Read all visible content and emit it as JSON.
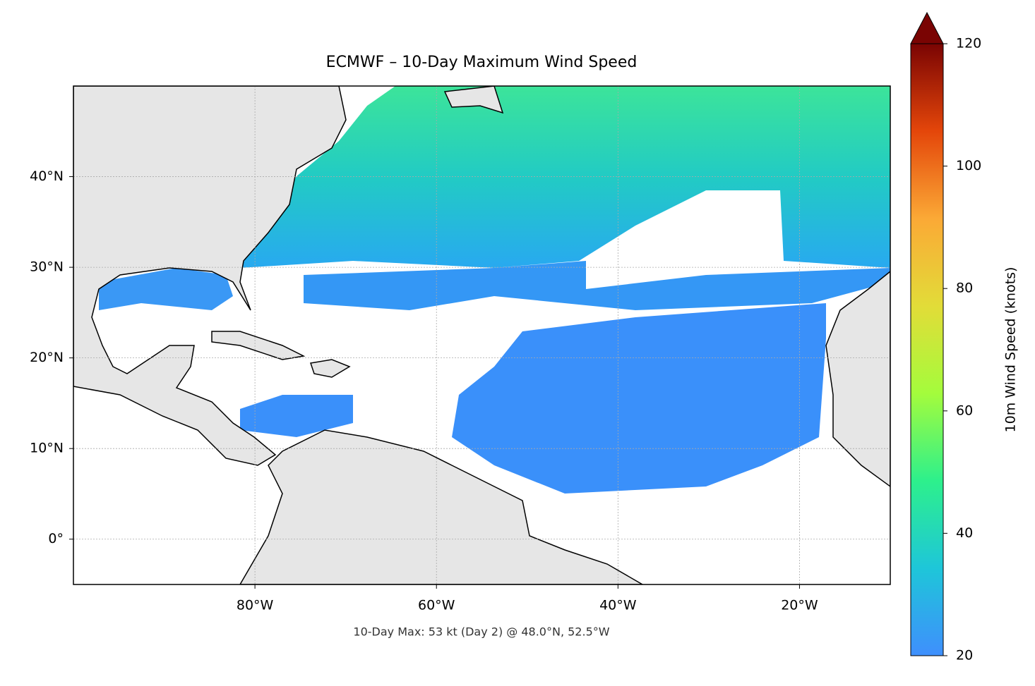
{
  "title": "ECMWF – 10-Day Maximum Wind Speed",
  "annotation": "10-Day Max: 53 kt (Day 2) @ 48.0°N, 52.5°W",
  "map": {
    "lonlim": [
      -100,
      -10
    ],
    "latlim": [
      -5,
      50
    ],
    "grid": true,
    "lon_ticks": [
      {
        "value": -80,
        "label": "80°W"
      },
      {
        "value": -60,
        "label": "60°W"
      },
      {
        "value": -40,
        "label": "40°W"
      },
      {
        "value": -20,
        "label": "20°W"
      }
    ],
    "lat_ticks": [
      {
        "value": 0,
        "label": "0°"
      },
      {
        "value": 10,
        "label": "10°N"
      },
      {
        "value": 20,
        "label": "20°N"
      },
      {
        "value": 30,
        "label": "30°N"
      },
      {
        "value": 40,
        "label": "40°N"
      }
    ]
  },
  "colorbar": {
    "label": "10m Wind Speed (knots)",
    "lim": [
      20,
      120
    ],
    "ticks": [
      20,
      40,
      60,
      80,
      100,
      120
    ],
    "extend": "max",
    "colors": [
      "#3f8ffd",
      "#1ec6d9",
      "#2df08c",
      "#a4fc3c",
      "#e2dc38",
      "#fba936",
      "#e4460a",
      "#7a0403"
    ]
  }
}
